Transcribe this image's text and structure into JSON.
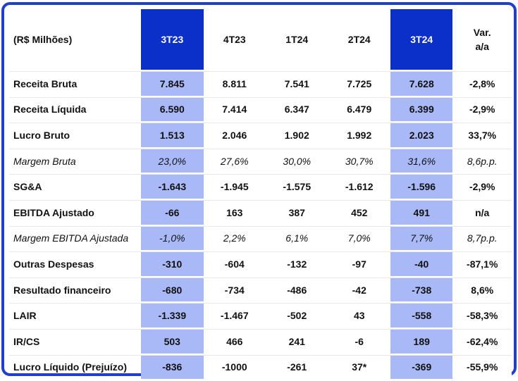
{
  "table": {
    "header": {
      "label": "(R$ Milhões)",
      "cols": [
        "3T23",
        "4T23",
        "1T24",
        "2T24",
        "3T24"
      ],
      "var": "Var.\na/a"
    },
    "rows": [
      {
        "label": "Receita Bruta",
        "italic": false,
        "values": [
          "7.845",
          "8.811",
          "7.541",
          "7.725",
          "7.628"
        ],
        "var": "-2,8%"
      },
      {
        "label": "Receita Líquida",
        "italic": false,
        "values": [
          "6.590",
          "7.414",
          "6.347",
          "6.479",
          "6.399"
        ],
        "var": "-2,9%"
      },
      {
        "label": "Lucro Bruto",
        "italic": false,
        "values": [
          "1.513",
          "2.046",
          "1.902",
          "1.992",
          "2.023"
        ],
        "var": "33,7%"
      },
      {
        "label": "Margem Bruta",
        "italic": true,
        "values": [
          "23,0%",
          "27,6%",
          "30,0%",
          "30,7%",
          "31,6%"
        ],
        "var": "8,6p.p."
      },
      {
        "label": "SG&A",
        "italic": false,
        "values": [
          "-1.643",
          "-1.945",
          "-1.575",
          "-1.612",
          "-1.596"
        ],
        "var": "-2,9%"
      },
      {
        "label": "EBITDA Ajustado",
        "italic": false,
        "values": [
          "-66",
          "163",
          "387",
          "452",
          "491"
        ],
        "var": "n/a"
      },
      {
        "label": "Margem EBITDA Ajustada",
        "italic": true,
        "values": [
          "-1,0%",
          "2,2%",
          "6,1%",
          "7,0%",
          "7,7%"
        ],
        "var": "8,7p.p."
      },
      {
        "label": "Outras Despesas",
        "italic": false,
        "values": [
          "-310",
          "-604",
          "-132",
          "-97",
          "-40"
        ],
        "var": "-87,1%"
      },
      {
        "label": "Resultado financeiro",
        "italic": false,
        "values": [
          "-680",
          "-734",
          "-486",
          "-42",
          "-738"
        ],
        "var": "8,6%"
      },
      {
        "label": "LAIR",
        "italic": false,
        "values": [
          "-1.339",
          "-1.467",
          "-502",
          "43",
          "-558"
        ],
        "var": "-58,3%"
      },
      {
        "label": "IR/CS",
        "italic": false,
        "values": [
          "503",
          "466",
          "241",
          "-6",
          "189"
        ],
        "var": "-62,4%"
      },
      {
        "label": "Lucro Líquido (Prejuízo)",
        "italic": false,
        "values": [
          "-836",
          "-1000",
          "-261",
          "37*",
          "-369"
        ],
        "var": "-55,9%"
      }
    ],
    "highlight_cols": [
      0,
      4
    ],
    "colors": {
      "frame": "#1f3fd1",
      "header_highlight": "#0b2fc9",
      "cell_highlight": "#a9b9f8"
    }
  }
}
